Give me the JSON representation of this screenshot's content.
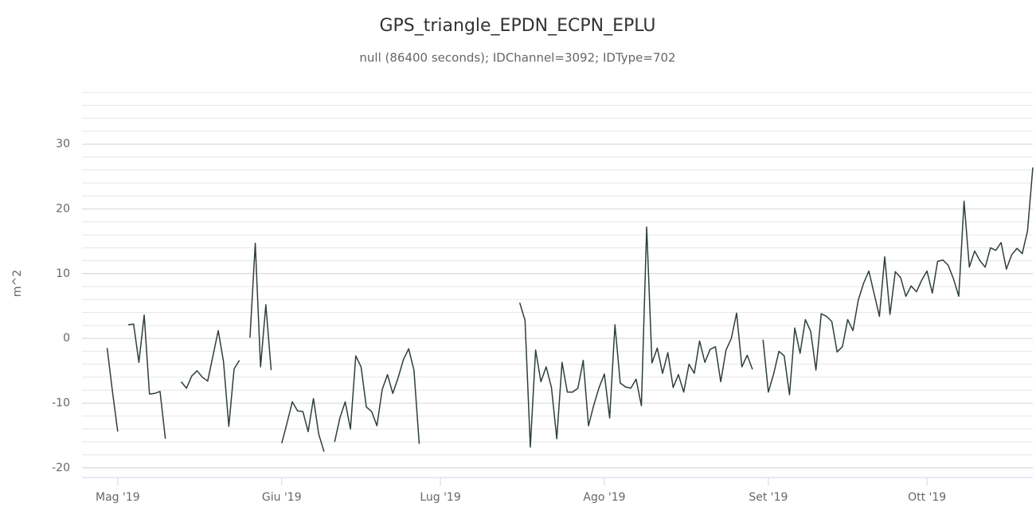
{
  "chart_data": {
    "type": "line",
    "title": "GPS_triangle_EPDN_ECPN_EPLU",
    "subtitle": "null (86400 seconds); IDChannel=3092; IDType=702",
    "y_label": "m^2",
    "categories": [
      null,
      null,
      null,
      null,
      null,
      null,
      "Mag '19",
      null,
      null,
      null,
      null,
      null,
      null,
      null,
      null,
      null,
      null,
      null,
      null,
      null,
      null,
      null,
      null,
      null,
      null,
      null,
      null,
      null,
      null,
      null,
      null,
      null,
      null,
      null,
      null,
      null,
      null,
      "Giu '19",
      null,
      null,
      null,
      null,
      null,
      null,
      null,
      null,
      null,
      null,
      null,
      null,
      null,
      null,
      null,
      null,
      null,
      null,
      null,
      null,
      null,
      null,
      null,
      null,
      null,
      null,
      null,
      null,
      null,
      "Lug '19",
      null,
      null,
      null,
      null,
      null,
      null,
      null,
      null,
      null,
      null,
      null,
      null,
      null,
      null,
      null,
      null,
      null,
      null,
      null,
      null,
      null,
      null,
      null,
      null,
      null,
      null,
      null,
      null,
      null,
      null,
      "Ago '19",
      null,
      null,
      null,
      null,
      null,
      null,
      null,
      null,
      null,
      null,
      null,
      null,
      null,
      null,
      null,
      null,
      null,
      null,
      null,
      null,
      null,
      null,
      null,
      null,
      null,
      null,
      null,
      null,
      null,
      null,
      "Set '19",
      null,
      null,
      null,
      null,
      null,
      null,
      null,
      null,
      null,
      null,
      null,
      null,
      null,
      null,
      null,
      null,
      null,
      null,
      null,
      null,
      null,
      null,
      null,
      null,
      null,
      null,
      null,
      null,
      null,
      "Ott '19",
      null,
      null,
      null,
      null,
      null,
      null,
      null,
      null,
      null,
      null,
      null,
      null,
      null,
      null,
      null,
      null,
      null,
      null,
      null,
      null
    ],
    "values": [
      null,
      null,
      null,
      null,
      -1.5,
      -8.2,
      -14.4,
      null,
      2.1,
      2.2,
      -3.7,
      3.6,
      -8.6,
      -8.5,
      -8.2,
      -15.5,
      null,
      null,
      -6.7,
      -7.7,
      -5.8,
      -5.0,
      -6.0,
      -6.6,
      -2.7,
      1.2,
      -3.6,
      -13.6,
      -4.7,
      -3.4,
      null,
      0.1,
      14.7,
      -4.4,
      5.2,
      -4.9,
      null,
      -16.2,
      -13.1,
      -9.8,
      -11.2,
      -11.3,
      -14.4,
      -9.3,
      -14.8,
      -17.5,
      null,
      -16.0,
      -12.3,
      -9.8,
      -14.0,
      -2.7,
      -4.4,
      -10.6,
      -11.3,
      -13.5,
      -7.9,
      -5.6,
      -8.5,
      -6.1,
      -3.3,
      -1.6,
      -4.9,
      -16.3,
      null,
      null,
      null,
      null,
      null,
      null,
      null,
      null,
      null,
      null,
      null,
      null,
      null,
      null,
      null,
      null,
      null,
      null,
      5.5,
      2.8,
      -16.8,
      -1.8,
      -6.7,
      -4.4,
      -7.6,
      -15.5,
      -3.7,
      -8.3,
      -8.3,
      -7.7,
      -3.4,
      -13.5,
      -10.3,
      -7.6,
      -5.5,
      -12.3,
      2.1,
      -6.9,
      -7.5,
      -7.7,
      -6.3,
      -10.4,
      17.2,
      -3.8,
      -1.5,
      -5.4,
      -2.2,
      -7.6,
      -5.6,
      -8.3,
      -4.0,
      -5.4,
      -0.4,
      -3.7,
      -1.7,
      -1.3,
      -6.7,
      -1.8,
      0,
      3.9,
      -4.4,
      -2.6,
      -4.8,
      null,
      -0.2,
      -8.3,
      -5.5,
      -2.0,
      -2.7,
      -8.7,
      1.6,
      -2.3,
      2.9,
      1.1,
      -4.9,
      3.8,
      3.4,
      2.6,
      -2.1,
      -1.3,
      2.9,
      1.2,
      5.9,
      8.5,
      10.4,
      6.9,
      3.4,
      12.6,
      3.7,
      10.3,
      9.4,
      6.5,
      8.1,
      7.2,
      9.0,
      10.4,
      7.0,
      11.9,
      12.1,
      11.3,
      9.2,
      6.5,
      21.2,
      11.0,
      13.5,
      12.0,
      11.0,
      14.0,
      13.6,
      14.8,
      10.7,
      12.9,
      13.9,
      13.1,
      16.6,
      26.4
    ],
    "color": "#2f3f3a",
    "ylim": [
      -21.5,
      38.5
    ],
    "yticks": [
      -20,
      -10,
      0,
      10,
      20,
      30
    ],
    "minor_yticks": [
      -20,
      -18,
      -16,
      -14,
      -12,
      -10,
      -8,
      -6,
      -4,
      -2,
      0,
      2,
      4,
      6,
      8,
      10,
      12,
      14,
      16,
      18,
      20,
      22,
      24,
      26,
      28,
      30,
      32,
      34,
      36,
      38
    ],
    "grid": true
  }
}
